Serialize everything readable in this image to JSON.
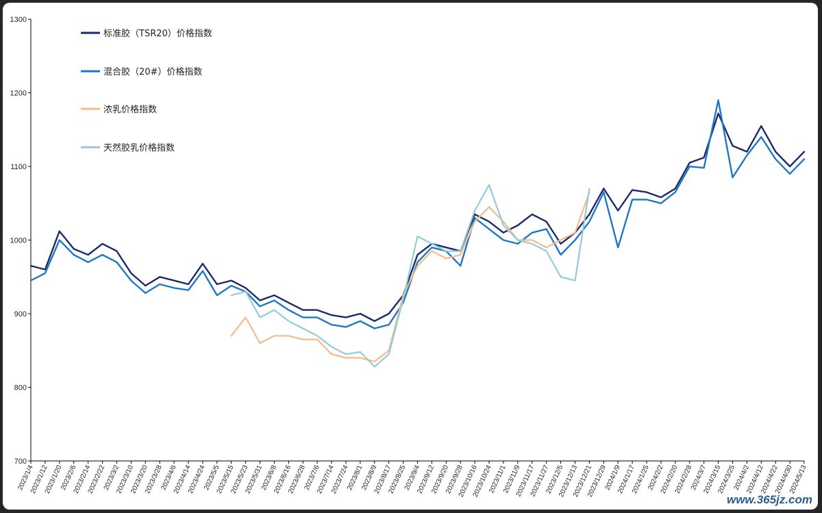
{
  "chart_data": {
    "type": "line",
    "title": "",
    "xlabel": "",
    "ylabel": "",
    "ylim": [
      700,
      1300
    ],
    "y_ticks": [
      "700",
      "800",
      "900",
      "1000",
      "1100",
      "1200",
      "1300"
    ],
    "x_dates": [
      "2023/1/4",
      "2023/1/12",
      "2023/1/20",
      "2023/2/6",
      "2023/2/14",
      "2023/2/22",
      "2023/3/2",
      "2023/3/10",
      "2023/3/20",
      "2023/3/28",
      "2023/4/6",
      "2023/4/14",
      "2023/4/24",
      "2023/5/5",
      "2023/5/15",
      "2023/5/23",
      "2023/5/31",
      "2023/6/8",
      "2023/6/16",
      "2023/6/28",
      "2023/7/6",
      "2023/7/14",
      "2023/7/24",
      "2023/8/1",
      "2023/8/9",
      "2023/8/17",
      "2023/8/25",
      "2023/9/4",
      "2023/9/12",
      "2023/9/20",
      "2023/9/28",
      "2023/10/16",
      "2023/10/24",
      "2023/11/1",
      "2023/11/9",
      "2023/11/17",
      "2023/11/27",
      "2023/12/5",
      "2023/12/13",
      "2023/12/21",
      "2023/12/29",
      "2024/1/9",
      "2024/1/17",
      "2024/1/25",
      "2024/2/2",
      "2024/2/20",
      "2024/2/28",
      "2024/3/7",
      "2024/3/15",
      "2024/3/25",
      "2024/4/2",
      "2024/4/12",
      "2024/4/22",
      "2024/4/30",
      "2024/5/13"
    ],
    "legend_position": "top-left",
    "grid": false,
    "series": [
      {
        "name": "标准胶（TSR20）价格指数",
        "color": "#1a2a6c",
        "values": [
          965,
          960,
          1012,
          988,
          980,
          995,
          985,
          955,
          938,
          950,
          945,
          940,
          968,
          940,
          945,
          935,
          918,
          925,
          915,
          905,
          905,
          898,
          895,
          900,
          890,
          900,
          925,
          980,
          995,
          990,
          985,
          1035,
          1025,
          1010,
          1020,
          1035,
          1025,
          995,
          1010,
          1035,
          1070,
          1040,
          1068,
          1065,
          1058,
          1070,
          1105,
          1112,
          1172,
          1128,
          1120,
          1155,
          1120,
          1100,
          1120
        ]
      },
      {
        "name": "混合胶（20#）价格指数",
        "color": "#1f77c4",
        "values": [
          945,
          955,
          1000,
          980,
          970,
          980,
          970,
          945,
          928,
          940,
          935,
          932,
          958,
          925,
          938,
          930,
          910,
          918,
          905,
          895,
          895,
          885,
          882,
          890,
          880,
          885,
          915,
          970,
          990,
          985,
          965,
          1030,
          1015,
          1000,
          995,
          1010,
          1015,
          980,
          1000,
          1025,
          1065,
          990,
          1055,
          1055,
          1050,
          1065,
          1100,
          1098,
          1190,
          1085,
          1115,
          1140,
          1110,
          1090,
          1110
        ]
      },
      {
        "name": "浓乳价格指数",
        "color": "#f5b98a",
        "values": [
          null,
          null,
          null,
          null,
          null,
          null,
          null,
          null,
          null,
          null,
          null,
          null,
          null,
          null,
          870,
          895,
          860,
          870,
          870,
          865,
          865,
          845,
          840,
          840,
          835,
          850,
          925,
          965,
          985,
          975,
          980,
          1025,
          1045,
          1025,
          1000,
          1000,
          990,
          1000,
          1010,
          1065,
          null,
          null,
          null,
          null,
          null,
          null,
          null,
          null,
          null,
          null,
          null,
          null,
          null,
          null,
          null
        ]
      },
      {
        "name": "天然胶乳价格指数",
        "color": "#93cbd8",
        "values": [
          null,
          null,
          null,
          null,
          null,
          null,
          null,
          null,
          null,
          null,
          null,
          null,
          null,
          null,
          925,
          930,
          895,
          905,
          890,
          880,
          870,
          855,
          845,
          848,
          828,
          845,
          920,
          1005,
          995,
          985,
          985,
          1040,
          1075,
          1020,
          1000,
          995,
          985,
          950,
          945,
          1070,
          null,
          null,
          null,
          null,
          null,
          null,
          null,
          null,
          null,
          null,
          null,
          null,
          null,
          null,
          null
        ]
      }
    ]
  },
  "watermark": "www.365jz.com"
}
